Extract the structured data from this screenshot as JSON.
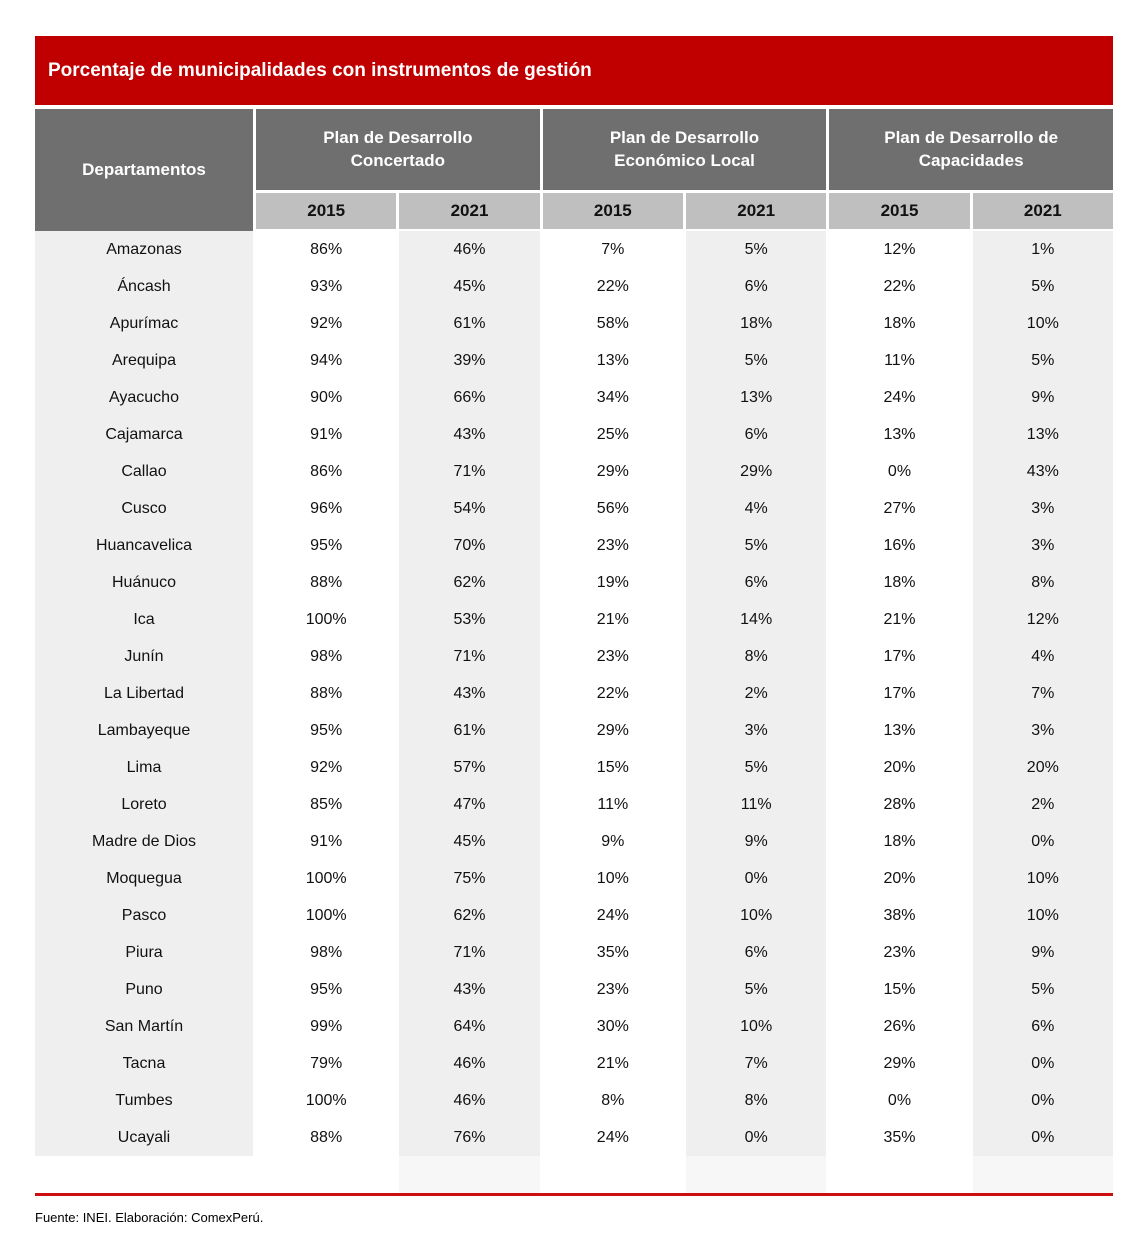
{
  "title": "Porcentaje de municipalidades con instrumentos de gestión",
  "colors": {
    "accent_red": "#C00000",
    "divider_red": "#CC0E0E",
    "group_header_gray": "#6F6F6F",
    "year_band_gray": "#BFBFBF",
    "stripe_gray": "#EFEFEF"
  },
  "footer": {
    "source": "Fuente: INEI. Elaboración: ComexPerú."
  },
  "chart_data": {
    "type": "table",
    "title": "Porcentaje de municipalidades con instrumentos de gestión",
    "department_header": "Departamentos",
    "groups": [
      {
        "label": "Plan de Desarrollo Concertado",
        "years": [
          "2015",
          "2021"
        ]
      },
      {
        "label": "Plan de Desarrollo Económico Local",
        "years": [
          "2015",
          "2021"
        ]
      },
      {
        "label": "Plan de Desarrollo de Capacidades",
        "years": [
          "2015",
          "2021"
        ]
      }
    ],
    "rows": [
      {
        "department": "Amazonas",
        "values": [
          "86%",
          "46%",
          "7%",
          "5%",
          "12%",
          "1%"
        ]
      },
      {
        "department": "Áncash",
        "values": [
          "93%",
          "45%",
          "22%",
          "6%",
          "22%",
          "5%"
        ]
      },
      {
        "department": "Apurímac",
        "values": [
          "92%",
          "61%",
          "58%",
          "18%",
          "18%",
          "10%"
        ]
      },
      {
        "department": "Arequipa",
        "values": [
          "94%",
          "39%",
          "13%",
          "5%",
          "11%",
          "5%"
        ]
      },
      {
        "department": "Ayacucho",
        "values": [
          "90%",
          "66%",
          "34%",
          "13%",
          "24%",
          "9%"
        ]
      },
      {
        "department": "Cajamarca",
        "values": [
          "91%",
          "43%",
          "25%",
          "6%",
          "13%",
          "13%"
        ]
      },
      {
        "department": "Callao",
        "values": [
          "86%",
          "71%",
          "29%",
          "29%",
          "0%",
          "43%"
        ]
      },
      {
        "department": "Cusco",
        "values": [
          "96%",
          "54%",
          "56%",
          "4%",
          "27%",
          "3%"
        ]
      },
      {
        "department": "Huancavelica",
        "values": [
          "95%",
          "70%",
          "23%",
          "5%",
          "16%",
          "3%"
        ]
      },
      {
        "department": "Huánuco",
        "values": [
          "88%",
          "62%",
          "19%",
          "6%",
          "18%",
          "8%"
        ]
      },
      {
        "department": "Ica",
        "values": [
          "100%",
          "53%",
          "21%",
          "14%",
          "21%",
          "12%"
        ]
      },
      {
        "department": "Junín",
        "values": [
          "98%",
          "71%",
          "23%",
          "8%",
          "17%",
          "4%"
        ]
      },
      {
        "department": "La Libertad",
        "values": [
          "88%",
          "43%",
          "22%",
          "2%",
          "17%",
          "7%"
        ]
      },
      {
        "department": "Lambayeque",
        "values": [
          "95%",
          "61%",
          "29%",
          "3%",
          "13%",
          "3%"
        ]
      },
      {
        "department": "Lima",
        "values": [
          "92%",
          "57%",
          "15%",
          "5%",
          "20%",
          "20%"
        ]
      },
      {
        "department": "Loreto",
        "values": [
          "85%",
          "47%",
          "11%",
          "11%",
          "28%",
          "2%"
        ]
      },
      {
        "department": "Madre de Dios",
        "values": [
          "91%",
          "45%",
          "9%",
          "9%",
          "18%",
          "0%"
        ]
      },
      {
        "department": "Moquegua",
        "values": [
          "100%",
          "75%",
          "10%",
          "0%",
          "20%",
          "10%"
        ]
      },
      {
        "department": "Pasco",
        "values": [
          "100%",
          "62%",
          "24%",
          "10%",
          "38%",
          "10%"
        ]
      },
      {
        "department": "Piura",
        "values": [
          "98%",
          "71%",
          "35%",
          "6%",
          "23%",
          "9%"
        ]
      },
      {
        "department": "Puno",
        "values": [
          "95%",
          "43%",
          "23%",
          "5%",
          "15%",
          "5%"
        ]
      },
      {
        "department": "San Martín",
        "values": [
          "99%",
          "64%",
          "30%",
          "10%",
          "26%",
          "6%"
        ]
      },
      {
        "department": "Tacna",
        "values": [
          "79%",
          "46%",
          "21%",
          "7%",
          "29%",
          "0%"
        ]
      },
      {
        "department": "Tumbes",
        "values": [
          "100%",
          "46%",
          "8%",
          "8%",
          "0%",
          "0%"
        ]
      },
      {
        "department": "Ucayali",
        "values": [
          "88%",
          "76%",
          "24%",
          "0%",
          "35%",
          "0%"
        ]
      }
    ]
  }
}
